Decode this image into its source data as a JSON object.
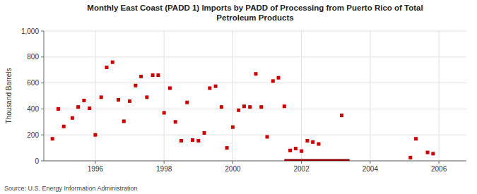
{
  "chart_data": {
    "type": "scatter",
    "title": "Monthly East Coast (PADD 1) Imports by PADD of Processing from Puerto Rico of Total\nPetroleum Products",
    "y_label": "Thousand Barrels",
    "source": "Source: U.S. Energy Information Administration",
    "xlim": [
      1994.5,
      2006.8
    ],
    "ylim": [
      0,
      1000
    ],
    "xticks": [
      1996,
      1998,
      2000,
      2002,
      2004,
      2006
    ],
    "yticks": [
      0,
      200,
      400,
      600,
      800,
      {
        "value": 1000,
        "label": "1,000"
      }
    ],
    "grid": true,
    "series": [
      {
        "type": "scatter",
        "color": "#cc0000",
        "marker": "square",
        "x": [
          1994.75,
          1994.92,
          1995.08,
          1995.33,
          1995.5,
          1995.67,
          1995.83,
          1996.0,
          1996.17,
          1996.33,
          1996.5,
          1996.67,
          1996.83,
          1997.0,
          1997.17,
          1997.33,
          1997.5,
          1997.67,
          1997.83,
          1998.0,
          1998.17,
          1998.33,
          1998.5,
          1998.67,
          1998.83,
          1999.0,
          1999.17,
          1999.33,
          1999.5,
          1999.67,
          1999.83,
          2000.0,
          2000.17,
          2000.33,
          2000.5,
          2000.67,
          2000.83,
          2001.0,
          2001.17,
          2001.33,
          2001.5,
          2001.67,
          2001.83,
          2002.0,
          2002.17,
          2002.33,
          2002.5,
          2003.17,
          2005.17,
          2005.33,
          2005.67,
          2005.83
        ],
        "values": [
          170,
          400,
          265,
          330,
          415,
          465,
          405,
          200,
          490,
          720,
          760,
          470,
          305,
          460,
          580,
          650,
          490,
          660,
          660,
          370,
          560,
          300,
          155,
          450,
          160,
          155,
          215,
          560,
          575,
          415,
          100,
          260,
          390,
          420,
          415,
          670,
          415,
          185,
          615,
          640,
          420,
          80,
          95,
          75,
          155,
          145,
          130,
          350,
          25,
          170,
          65,
          55
        ]
      },
      {
        "type": "line",
        "color": "#8b0000",
        "x": [
          2001.5,
          2003.4
        ],
        "values": [
          0,
          0
        ]
      }
    ]
  }
}
